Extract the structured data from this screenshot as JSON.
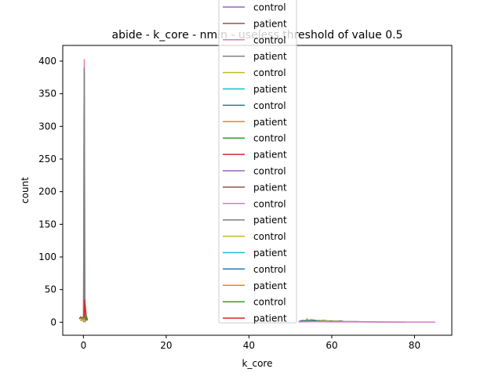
{
  "chart_data": {
    "type": "line",
    "title": "abide - k_core - nmin - useless threshold of value 0.5",
    "xlabel": "k_core",
    "ylabel": "count",
    "xlim": [
      -5,
      89
    ],
    "ylim": [
      -20,
      424
    ],
    "xticks": [
      0,
      20,
      40,
      60,
      80
    ],
    "yticks": [
      0,
      50,
      100,
      150,
      200,
      250,
      300,
      350,
      400
    ],
    "grid": false,
    "legend_position": "upper-center, overflowing plot top",
    "legend": [
      {
        "name": "control",
        "color": "#9467bd"
      },
      {
        "name": "patient",
        "color": "#8c564b"
      },
      {
        "name": "control",
        "color": "#e377c2"
      },
      {
        "name": "patient",
        "color": "#7f7f7f"
      },
      {
        "name": "control",
        "color": "#bcbd22"
      },
      {
        "name": "patient",
        "color": "#17becf"
      },
      {
        "name": "control",
        "color": "#1f77b4"
      },
      {
        "name": "patient",
        "color": "#ff7f0e"
      },
      {
        "name": "control",
        "color": "#2ca02c"
      },
      {
        "name": "patient",
        "color": "#d62728"
      },
      {
        "name": "control",
        "color": "#9467bd"
      },
      {
        "name": "patient",
        "color": "#8c564b"
      },
      {
        "name": "control",
        "color": "#e377c2"
      },
      {
        "name": "patient",
        "color": "#7f7f7f"
      },
      {
        "name": "control",
        "color": "#bcbd22"
      },
      {
        "name": "patient",
        "color": "#17becf"
      },
      {
        "name": "control",
        "color": "#1f77b4"
      },
      {
        "name": "patient",
        "color": "#ff7f0e"
      },
      {
        "name": "control",
        "color": "#2ca02c"
      },
      {
        "name": "patient",
        "color": "#d62728"
      }
    ],
    "series": [
      {
        "color": "#e377c2",
        "x": [
          0,
          0.05,
          0.1,
          0.15,
          0.2,
          0.25,
          0.3,
          0.35,
          0.4
        ],
        "y": [
          0,
          60,
          180,
          330,
          403,
          300,
          120,
          30,
          0
        ]
      },
      {
        "color": "#7f7f7f",
        "x": [
          0,
          0.05,
          0.1,
          0.15,
          0.2,
          0.25,
          0.3,
          0.35,
          0.4
        ],
        "y": [
          0,
          50,
          160,
          300,
          390,
          280,
          100,
          20,
          0
        ]
      },
      {
        "color": "#d62728",
        "x": [
          -0.6,
          -0.3,
          0,
          0.2,
          0.3,
          0.5,
          0.7,
          0.9
        ],
        "y": [
          2,
          7,
          4,
          12,
          35,
          20,
          8,
          3
        ]
      },
      {
        "color": "#ff7f0e",
        "x": [
          -0.5,
          -0.2,
          0.1,
          0.4,
          0.6,
          0.8
        ],
        "y": [
          3,
          6,
          5,
          9,
          6,
          2
        ]
      },
      {
        "color": "#8c564b",
        "x": [
          -1.0,
          -0.7,
          -0.4,
          -0.1,
          0.3,
          0.6,
          0.9
        ],
        "y": [
          5,
          8,
          4,
          7,
          9,
          5,
          3
        ]
      },
      {
        "color": "#2ca02c",
        "x": [
          0.4,
          0.6,
          0.8,
          1.0
        ],
        "y": [
          4,
          10,
          8,
          3
        ]
      },
      {
        "color": "#bcbd22",
        "x": [
          -0.8,
          -0.4,
          0,
          0.4
        ],
        "y": [
          3,
          5,
          2,
          4
        ]
      },
      {
        "color": "#7f7f7f",
        "x": [
          52,
          53,
          53.5,
          54,
          54.5,
          55,
          56,
          57,
          58,
          59,
          60,
          61,
          62,
          63,
          64,
          66,
          68,
          70,
          72,
          74,
          76,
          78
        ],
        "y": [
          1,
          3,
          2,
          5,
          3,
          4,
          3,
          2,
          3,
          2,
          2,
          1,
          2,
          1,
          1,
          1,
          0.6,
          0.5,
          0.4,
          0.3,
          0.2,
          0.1
        ]
      },
      {
        "color": "#bcbd22",
        "x": [
          53,
          54,
          55,
          56,
          57,
          58,
          59,
          60,
          61,
          62
        ],
        "y": [
          2,
          4,
          3,
          2,
          3,
          2,
          2,
          1,
          2,
          1
        ]
      },
      {
        "color": "#1f77b4",
        "x": [
          52,
          54,
          56,
          58,
          60,
          62,
          64
        ],
        "y": [
          1,
          2,
          2,
          1,
          1,
          1,
          0.5
        ]
      },
      {
        "color": "#e377c2",
        "x": [
          52,
          56,
          60,
          64,
          68,
          72,
          76,
          80,
          84,
          85
        ],
        "y": [
          0.6,
          0.8,
          0.6,
          0.5,
          0.4,
          0.3,
          0.3,
          0.2,
          0.2,
          0.1
        ]
      }
    ]
  }
}
